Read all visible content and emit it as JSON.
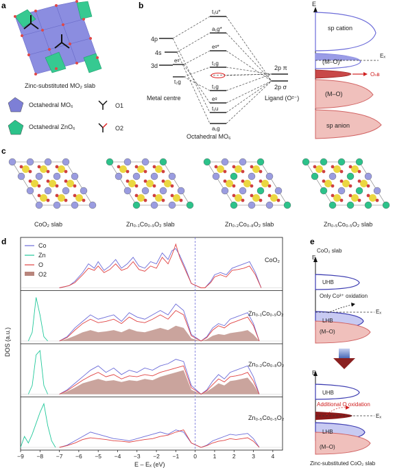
{
  "panels": {
    "a": {
      "letter": "a",
      "slab_caption": "Zinc-substituted MO₂ slab",
      "legend": [
        {
          "label": "Octahedral MO₆",
          "color": "#7d7fd6"
        },
        {
          "label": "Octahedral ZnO₆",
          "color": "#2cc28a"
        },
        {
          "label": "O1",
          "color": "#111111"
        },
        {
          "label": "O2",
          "color": "#e02020"
        }
      ]
    },
    "b": {
      "letter": "b",
      "metal_levels": [
        "4p",
        "4s",
        "3d",
        "eᵍ",
        "t₂g"
      ],
      "metal_label": "Metal centre",
      "mo_levels": [
        "t₁u*",
        "a₁g*",
        "eᵍ*",
        "t₂g",
        "t₂g",
        "eᵍ",
        "t₁u",
        "a₁g"
      ],
      "ligand_levels": [
        "2p π",
        "2p σ"
      ],
      "ligand_label": "Ligand (O²⁻)",
      "center_label": "Octahedral MO₆",
      "axis_label": "E",
      "band_labels": {
        "sp_cation": "sp cation",
        "mo_star": "(M–O)*",
        "ef": "Eₓ",
        "onb": "Oₙʙ",
        "mo": "(M–O)",
        "sp_anion": "sp anion"
      }
    },
    "c": {
      "letter": "c",
      "slabs": [
        "CoO₂ slab",
        "Zn₀.₁Co₀.₉O₂ slab",
        "Zn₀.₂Co₀.₈O₂ slab",
        "Zn₀.₅Co₀.₅O₂ slab"
      ]
    },
    "d": {
      "letter": "d",
      "ylabel": "DOS (a.u.)",
      "xlabel": "E – Eₓ (eV)",
      "legend": [
        {
          "name": "Co",
          "color": "#6a6ad8"
        },
        {
          "name": "Zn",
          "color": "#20c89a"
        },
        {
          "name": "O",
          "color": "#e04040"
        },
        {
          "name": "O2",
          "color": "#b8857c"
        }
      ],
      "subpanel_labels": [
        "CoO₂",
        "Zn₀.₁Co₀.₉O₂",
        "Zn₀.₂Co₀.₈O₂",
        "Zn₀.₅Co₀.₅O₂"
      ],
      "x_ticks": [
        "−9",
        "−8",
        "−7",
        "−6",
        "−5",
        "−4",
        "−3",
        "−2",
        "−1",
        "0",
        "1",
        "2",
        "3",
        "4"
      ]
    },
    "e": {
      "letter": "e",
      "top_title": "CoO₂ slab",
      "axis_label": "E",
      "uhb": "UHB",
      "lhb": "LHB",
      "mo": "(M–O)",
      "ef": "Eₓ",
      "top_note": "Only Co³⁺ oxidation",
      "bottom_note": "Additional O oxidation",
      "bottom_title": "Zinc-substituted CoO₂ slab"
    }
  },
  "chart_data": {
    "type": "line",
    "title": "",
    "xlabel": "E – Eₓ (eV)",
    "ylabel": "DOS (a.u.)",
    "xlim": [
      -9,
      4.5
    ],
    "x_ticks": [
      -9,
      -8,
      -7,
      -6,
      -5,
      -4,
      -3,
      -2,
      -1,
      0,
      1,
      2,
      3,
      4
    ],
    "fermi_level": 0,
    "panels": [
      {
        "label": "CoO₂",
        "series": [
          {
            "name": "Co",
            "x": [
              -7.0,
              -6.5,
              -6.2,
              -5.8,
              -5.5,
              -5.2,
              -5.0,
              -4.7,
              -4.4,
              -4.1,
              -3.8,
              -3.5,
              -3.2,
              -2.9,
              -2.6,
              -2.3,
              -2.0,
              -1.7,
              -1.4,
              -1.2,
              -1.0,
              -0.8,
              -0.5,
              -0.2,
              0.3,
              0.5,
              0.8,
              1.0,
              1.3,
              1.6,
              1.9,
              2.2,
              2.5,
              2.8,
              3.1,
              3.4
            ],
            "y": [
              0,
              0.05,
              0.15,
              0.35,
              0.55,
              0.45,
              0.6,
              0.4,
              0.5,
              0.65,
              0.45,
              0.55,
              0.7,
              0.5,
              0.45,
              0.6,
              0.55,
              0.8,
              0.65,
              0.85,
              0.9,
              0.75,
              0.45,
              0.1,
              0,
              0,
              0.15,
              0.3,
              0.35,
              0.3,
              0.45,
              0.5,
              0.55,
              0.6,
              0.35,
              0
            ]
          },
          {
            "name": "O",
            "x": [
              -7.0,
              -6.5,
              -6.2,
              -5.8,
              -5.5,
              -5.2,
              -5.0,
              -4.7,
              -4.4,
              -4.1,
              -3.8,
              -3.5,
              -3.2,
              -2.9,
              -2.6,
              -2.3,
              -2.0,
              -1.7,
              -1.4,
              -1.2,
              -1.0,
              -0.8,
              -0.5,
              -0.2,
              0.3,
              0.5,
              0.8,
              1.0,
              1.3,
              1.6,
              1.9,
              2.2,
              2.5,
              2.8,
              3.1,
              3.4
            ],
            "y": [
              0,
              0.05,
              0.12,
              0.3,
              0.45,
              0.4,
              0.5,
              0.35,
              0.42,
              0.55,
              0.4,
              0.45,
              0.6,
              0.42,
              0.38,
              0.5,
              0.45,
              0.7,
              0.55,
              0.75,
              1.0,
              0.7,
              0.4,
              0.1,
              0,
              0,
              0.12,
              0.25,
              0.3,
              0.25,
              0.4,
              0.42,
              0.45,
              0.5,
              0.3,
              0
            ]
          }
        ]
      },
      {
        "label": "Zn₀.₁Co₀.₉O₂",
        "series": [
          {
            "name": "Zn",
            "x": [
              -8.6,
              -8.4,
              -8.2,
              -8.0,
              -7.8,
              -7.6
            ],
            "y": [
              0,
              0.2,
              1.0,
              0.6,
              0.1,
              0
            ]
          },
          {
            "name": "Co",
            "x": [
              -7.0,
              -6.6,
              -6.2,
              -5.8,
              -5.4,
              -5.0,
              -4.6,
              -4.2,
              -3.8,
              -3.4,
              -3.0,
              -2.6,
              -2.2,
              -1.8,
              -1.4,
              -1.0,
              -0.6,
              -0.2,
              0.3,
              0.6,
              0.9,
              1.2,
              1.5,
              1.8,
              2.1,
              2.4,
              2.7,
              3.0,
              3.3
            ],
            "y": [
              0,
              0.1,
              0.3,
              0.45,
              0.6,
              0.5,
              0.55,
              0.6,
              0.45,
              0.65,
              0.55,
              0.5,
              0.6,
              0.7,
              0.6,
              0.85,
              0.7,
              0.15,
              0,
              0.1,
              0.3,
              0.4,
              0.35,
              0.5,
              0.55,
              0.6,
              0.65,
              0.4,
              0
            ]
          },
          {
            "name": "O",
            "x": [
              -7.0,
              -6.6,
              -6.2,
              -5.8,
              -5.4,
              -5.0,
              -4.6,
              -4.2,
              -3.8,
              -3.4,
              -3.0,
              -2.6,
              -2.2,
              -1.8,
              -1.4,
              -1.0,
              -0.6,
              -0.2,
              0.3,
              0.6,
              0.9,
              1.2,
              1.5,
              1.8,
              2.1,
              2.4,
              2.7,
              3.0,
              3.3
            ],
            "y": [
              0,
              0.08,
              0.25,
              0.4,
              0.5,
              0.42,
              0.45,
              0.5,
              0.4,
              0.55,
              0.45,
              0.42,
              0.5,
              0.6,
              0.5,
              0.7,
              0.6,
              0.12,
              0,
              0.08,
              0.25,
              0.35,
              0.3,
              0.4,
              0.45,
              0.5,
              0.55,
              0.35,
              0
            ]
          },
          {
            "name": "O2",
            "x": [
              -7.0,
              -6.6,
              -6.2,
              -5.8,
              -5.4,
              -5.0,
              -4.6,
              -4.2,
              -3.8,
              -3.4,
              -3.0,
              -2.6,
              -2.2,
              -1.8,
              -1.4,
              -1.0,
              -0.6,
              -0.2,
              0.3,
              0.6,
              0.9,
              1.2,
              1.5,
              1.8,
              2.1,
              2.4,
              2.7,
              3.0,
              3.3
            ],
            "y": [
              0,
              0.05,
              0.12,
              0.2,
              0.25,
              0.2,
              0.22,
              0.25,
              0.2,
              0.28,
              0.22,
              0.2,
              0.25,
              0.3,
              0.25,
              0.35,
              0.3,
              0.06,
              0,
              0.04,
              0.12,
              0.16,
              0.14,
              0.18,
              0.2,
              0.22,
              0.25,
              0.15,
              0
            ]
          }
        ]
      },
      {
        "label": "Zn₀.₂Co₀.₈O₂",
        "series": [
          {
            "name": "Zn",
            "x": [
              -8.6,
              -8.4,
              -8.2,
              -8.0,
              -7.8,
              -7.6
            ],
            "y": [
              0,
              0.2,
              0.9,
              1.0,
              0.2,
              0
            ]
          },
          {
            "name": "Co",
            "x": [
              -7.0,
              -6.6,
              -6.2,
              -5.8,
              -5.4,
              -5.0,
              -4.6,
              -4.2,
              -3.8,
              -3.4,
              -3.0,
              -2.6,
              -2.2,
              -1.8,
              -1.4,
              -1.0,
              -0.6,
              -0.2,
              0.3,
              0.6,
              0.9,
              1.2,
              1.5,
              1.8,
              2.1,
              2.4,
              2.7,
              3.0,
              3.3
            ],
            "y": [
              0,
              0.1,
              0.25,
              0.4,
              0.55,
              0.65,
              0.5,
              0.6,
              0.45,
              0.55,
              0.5,
              0.6,
              0.55,
              0.65,
              0.7,
              0.8,
              0.75,
              0.2,
              0,
              0.1,
              0.3,
              0.45,
              0.35,
              0.5,
              0.55,
              0.6,
              0.65,
              0.4,
              0
            ]
          },
          {
            "name": "O",
            "x": [
              -7.0,
              -6.6,
              -6.2,
              -5.8,
              -5.4,
              -5.0,
              -4.6,
              -4.2,
              -3.8,
              -3.4,
              -3.0,
              -2.6,
              -2.2,
              -1.8,
              -1.4,
              -1.0,
              -0.6,
              -0.2,
              0.3,
              0.6,
              0.9,
              1.2,
              1.5,
              1.8,
              2.1,
              2.4,
              2.7,
              3.0,
              3.3
            ],
            "y": [
              0,
              0.08,
              0.2,
              0.32,
              0.42,
              0.5,
              0.4,
              0.45,
              0.35,
              0.42,
              0.4,
              0.45,
              0.42,
              0.5,
              0.55,
              0.6,
              0.65,
              0.15,
              0,
              0.08,
              0.22,
              0.35,
              0.28,
              0.4,
              0.42,
              0.45,
              0.5,
              0.3,
              0
            ]
          },
          {
            "name": "O2",
            "x": [
              -7.0,
              -6.6,
              -6.2,
              -5.8,
              -5.4,
              -5.0,
              -4.6,
              -4.2,
              -3.8,
              -3.4,
              -3.0,
              -2.6,
              -2.2,
              -1.8,
              -1.4,
              -1.0,
              -0.6,
              -0.2,
              0.3,
              0.6,
              0.9,
              1.2,
              1.5,
              1.8,
              2.1,
              2.4,
              2.7,
              3.0,
              3.3
            ],
            "y": [
              0,
              0.06,
              0.15,
              0.25,
              0.3,
              0.35,
              0.3,
              0.32,
              0.28,
              0.32,
              0.3,
              0.35,
              0.32,
              0.4,
              0.45,
              0.5,
              0.55,
              0.1,
              0,
              0.06,
              0.15,
              0.25,
              0.2,
              0.3,
              0.32,
              0.35,
              0.38,
              0.22,
              0
            ]
          }
        ]
      },
      {
        "label": "Zn₀.₅Co₀.₅O₂",
        "series": [
          {
            "name": "Zn",
            "x": [
              -9.0,
              -8.8,
              -8.6,
              -8.4,
              -8.2,
              -8.0,
              -7.8,
              -7.6,
              -7.4,
              -7.2
            ],
            "y": [
              0,
              0.25,
              0.1,
              0.3,
              0.55,
              0.8,
              1.0,
              0.5,
              0.15,
              0
            ]
          },
          {
            "name": "Co",
            "x": [
              -7.0,
              -6.6,
              -6.2,
              -5.8,
              -5.4,
              -5.0,
              -4.6,
              -4.2,
              -3.8,
              -3.4,
              -3.0,
              -2.6,
              -2.2,
              -1.8,
              -1.4,
              -1.0,
              -0.6,
              -0.2,
              0.3,
              0.6,
              0.9,
              1.2,
              1.5,
              1.8,
              2.1,
              2.4,
              2.7,
              3.0,
              3.3
            ],
            "y": [
              0,
              0.05,
              0.15,
              0.25,
              0.35,
              0.3,
              0.25,
              0.2,
              0.18,
              0.15,
              0.2,
              0.25,
              0.3,
              0.35,
              0.3,
              0.4,
              0.35,
              0.1,
              0,
              0.05,
              0.15,
              0.2,
              0.25,
              0.3,
              0.28,
              0.3,
              0.32,
              0.2,
              0
            ]
          },
          {
            "name": "O",
            "x": [
              -7.0,
              -6.6,
              -6.2,
              -5.8,
              -5.4,
              -5.0,
              -4.6,
              -4.2,
              -3.8,
              -3.4,
              -3.0,
              -2.6,
              -2.2,
              -1.8,
              -1.4,
              -1.0,
              -0.6,
              -0.2,
              0.3,
              0.6,
              0.9,
              1.2,
              1.5,
              1.8,
              2.1,
              2.4,
              2.7,
              3.0,
              3.3
            ],
            "y": [
              0,
              0.04,
              0.1,
              0.18,
              0.22,
              0.2,
              0.18,
              0.15,
              0.14,
              0.12,
              0.15,
              0.18,
              0.2,
              0.25,
              0.28,
              0.35,
              0.4,
              0.1,
              0,
              0.04,
              0.1,
              0.14,
              0.16,
              0.2,
              0.18,
              0.2,
              0.22,
              0.14,
              0
            ]
          }
        ]
      }
    ]
  }
}
